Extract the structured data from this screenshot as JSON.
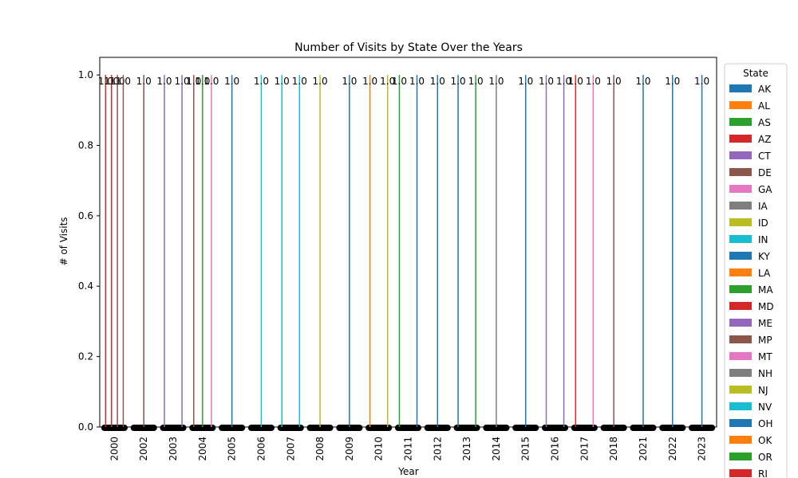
{
  "chart_data": {
    "type": "bar",
    "title": "Number of Visits by State Over the Years",
    "xlabel": "Year",
    "ylabel": "# of Visits",
    "ylim": [
      0,
      1.05
    ],
    "y_ticks": [
      "0.0",
      "0.2",
      "0.4",
      "0.6",
      "0.8",
      "1.0"
    ],
    "categories": [
      "2000",
      "2002",
      "2003",
      "2004",
      "2005",
      "2006",
      "2007",
      "2008",
      "2009",
      "2010",
      "2011",
      "2012",
      "2013",
      "2014",
      "2015",
      "2016",
      "2017",
      "2018",
      "2021",
      "2022",
      "2023"
    ],
    "legend": {
      "title": "State",
      "placement": "right",
      "entries": [
        {
          "name": "AK",
          "color": "#1f77b4"
        },
        {
          "name": "AL",
          "color": "#ff7f0e"
        },
        {
          "name": "AS",
          "color": "#2ca02c"
        },
        {
          "name": "AZ",
          "color": "#d62728"
        },
        {
          "name": "CT",
          "color": "#9467bd"
        },
        {
          "name": "DE",
          "color": "#8c564b"
        },
        {
          "name": "GA",
          "color": "#e377c2"
        },
        {
          "name": "IA",
          "color": "#7f7f7f"
        },
        {
          "name": "ID",
          "color": "#bcbd22"
        },
        {
          "name": "IN",
          "color": "#17becf"
        },
        {
          "name": "KY",
          "color": "#1f77b4"
        },
        {
          "name": "LA",
          "color": "#ff7f0e"
        },
        {
          "name": "MA",
          "color": "#2ca02c"
        },
        {
          "name": "MD",
          "color": "#d62728"
        },
        {
          "name": "ME",
          "color": "#9467bd"
        },
        {
          "name": "MP",
          "color": "#8c564b"
        },
        {
          "name": "MT",
          "color": "#e377c2"
        },
        {
          "name": "NH",
          "color": "#7f7f7f"
        },
        {
          "name": "NJ",
          "color": "#bcbd22"
        },
        {
          "name": "NV",
          "color": "#17becf"
        },
        {
          "name": "OH",
          "color": "#1f77b4"
        },
        {
          "name": "OK",
          "color": "#ff7f0e"
        },
        {
          "name": "OR",
          "color": "#2ca02c"
        },
        {
          "name": "RI",
          "color": "#d62728"
        }
      ]
    },
    "bars": [
      {
        "year": "2000",
        "state": "AZ",
        "value": 1.0
      },
      {
        "year": "2000",
        "state": "MD",
        "value": 1.0
      },
      {
        "year": "2000",
        "state": "DE",
        "value": 1.0
      },
      {
        "year": "2000",
        "state": "MP",
        "value": 1.0
      },
      {
        "year": "2002",
        "state": "DE",
        "value": 1.0
      },
      {
        "year": "2003",
        "state": "CT",
        "value": 1.0
      },
      {
        "year": "2003",
        "state": "ME",
        "value": 1.0
      },
      {
        "year": "2004",
        "state": "DE",
        "value": 1.0
      },
      {
        "year": "2004",
        "state": "AS",
        "value": 1.0
      },
      {
        "year": "2004",
        "state": "GA",
        "value": 1.0
      },
      {
        "year": "2005",
        "state": "AK",
        "value": 1.0
      },
      {
        "year": "2006",
        "state": "IN",
        "value": 1.0
      },
      {
        "year": "2007",
        "state": "IN",
        "value": 1.0
      },
      {
        "year": "2007",
        "state": "NV",
        "value": 1.0
      },
      {
        "year": "2008",
        "state": "ID",
        "value": 1.0
      },
      {
        "year": "2009",
        "state": "AK",
        "value": 1.0
      },
      {
        "year": "2010",
        "state": "AL",
        "value": 1.0
      },
      {
        "year": "2010",
        "state": "ID",
        "value": 1.0
      },
      {
        "year": "2011",
        "state": "AS",
        "value": 1.0
      },
      {
        "year": "2011",
        "state": "KY",
        "value": 1.0
      },
      {
        "year": "2012",
        "state": "AK",
        "value": 1.0
      },
      {
        "year": "2013",
        "state": "KY",
        "value": 1.0
      },
      {
        "year": "2013",
        "state": "MA",
        "value": 1.0
      },
      {
        "year": "2014",
        "state": "NH",
        "value": 1.0
      },
      {
        "year": "2015",
        "state": "AK",
        "value": 1.0
      },
      {
        "year": "2016",
        "state": "CT",
        "value": 1.0
      },
      {
        "year": "2016",
        "state": "ME",
        "value": 1.0
      },
      {
        "year": "2017",
        "state": "AZ",
        "value": 1.0
      },
      {
        "year": "2017",
        "state": "GA",
        "value": 1.0
      },
      {
        "year": "2018",
        "state": "MP",
        "value": 1.0
      },
      {
        "year": "2021",
        "state": "AK",
        "value": 1.0
      },
      {
        "year": "2022",
        "state": "OH",
        "value": 1.0
      },
      {
        "year": "2023",
        "state": "AK",
        "value": 1.0
      }
    ]
  }
}
